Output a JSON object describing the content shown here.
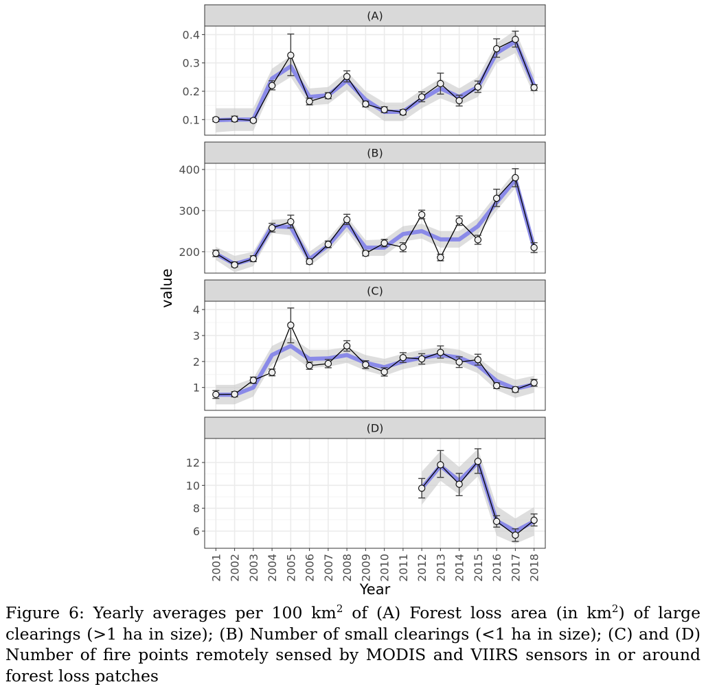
{
  "chart_data": {
    "type": "line",
    "x": [
      2001,
      2002,
      2003,
      2004,
      2005,
      2006,
      2007,
      2008,
      2009,
      2010,
      2011,
      2012,
      2013,
      2014,
      2015,
      2016,
      2017,
      2018
    ],
    "xlabel": "Year",
    "ylabel": "value",
    "grid": true,
    "colors": {
      "observed_line": "#000000",
      "point_fill": "#eeeeee",
      "error_bar": "#404040",
      "smooth_line": "#7b7bea",
      "smooth_band": "#c8c8c8",
      "strip": "#d9d9d9",
      "panel_border": "#333333",
      "grid": "#ebebeb"
    },
    "panels": [
      {
        "strip": "(A)",
        "ylim": [
          0.045,
          0.43
        ],
        "yticks": [
          0.1,
          0.2,
          0.3,
          0.4
        ],
        "ytick_labels": [
          "0.1",
          "0.2",
          "0.3",
          "0.4"
        ],
        "values": [
          0.1,
          0.102,
          0.097,
          0.22,
          0.327,
          0.164,
          0.184,
          0.252,
          0.155,
          0.135,
          0.126,
          0.18,
          0.227,
          0.167,
          0.215,
          0.35,
          0.383,
          0.213
        ],
        "err_low": [
          0.093,
          0.093,
          0.091,
          0.205,
          0.255,
          0.152,
          0.174,
          0.233,
          0.145,
          0.125,
          0.117,
          0.163,
          0.19,
          0.148,
          0.196,
          0.32,
          0.356,
          0.203
        ],
        "err_high": [
          0.107,
          0.112,
          0.103,
          0.237,
          0.402,
          0.176,
          0.195,
          0.272,
          0.165,
          0.145,
          0.135,
          0.198,
          0.264,
          0.186,
          0.236,
          0.385,
          0.412,
          0.223
        ],
        "smooth": [
          0.098,
          0.1,
          0.1,
          0.245,
          0.288,
          0.18,
          0.186,
          0.238,
          0.17,
          0.127,
          0.128,
          0.172,
          0.21,
          0.18,
          0.215,
          0.335,
          0.375,
          0.22
        ],
        "band_low": [
          0.055,
          0.06,
          0.06,
          0.21,
          0.25,
          0.15,
          0.155,
          0.205,
          0.14,
          0.095,
          0.095,
          0.14,
          0.175,
          0.15,
          0.18,
          0.3,
          0.335,
          0.185
        ],
        "band_high": [
          0.14,
          0.14,
          0.14,
          0.28,
          0.325,
          0.21,
          0.215,
          0.27,
          0.2,
          0.16,
          0.16,
          0.205,
          0.245,
          0.21,
          0.25,
          0.37,
          0.415,
          0.255
        ]
      },
      {
        "strip": "(B)",
        "ylim": [
          148,
          415
        ],
        "yticks": [
          200,
          300,
          400
        ],
        "ytick_labels": [
          "200",
          "300",
          "400"
        ],
        "values": [
          196,
          168,
          183,
          258,
          273,
          176,
          218,
          278,
          196,
          221,
          211,
          290,
          186,
          275,
          229,
          330,
          380,
          210
        ],
        "err_low": [
          188,
          163,
          176,
          248,
          258,
          170,
          210,
          266,
          190,
          212,
          200,
          280,
          178,
          264,
          218,
          310,
          358,
          198
        ],
        "err_high": [
          204,
          175,
          190,
          269,
          289,
          183,
          226,
          291,
          202,
          230,
          222,
          301,
          194,
          287,
          240,
          352,
          402,
          222
        ],
        "smooth": [
          195,
          170,
          183,
          262,
          260,
          182,
          215,
          268,
          210,
          210,
          243,
          250,
          230,
          230,
          262,
          320,
          375,
          210
        ],
        "band_low": [
          180,
          150,
          165,
          245,
          240,
          165,
          200,
          250,
          190,
          190,
          225,
          232,
          210,
          210,
          242,
          300,
          355,
          190
        ],
        "band_high": [
          212,
          190,
          200,
          278,
          280,
          200,
          232,
          285,
          228,
          230,
          262,
          268,
          250,
          250,
          282,
          340,
          395,
          230
        ]
      },
      {
        "strip": "(C)",
        "ylim": [
          0.12,
          4.32
        ],
        "yticks": [
          1,
          2,
          3,
          4
        ],
        "ytick_labels": [
          "1",
          "2",
          "3",
          "4"
        ],
        "values": [
          0.73,
          0.74,
          1.28,
          1.58,
          3.4,
          1.84,
          1.92,
          2.6,
          1.88,
          1.6,
          2.15,
          2.1,
          2.35,
          1.98,
          2.07,
          1.07,
          0.92,
          1.18
        ],
        "err_low": [
          0.58,
          0.64,
          1.16,
          1.45,
          2.72,
          1.7,
          1.76,
          2.4,
          1.73,
          1.44,
          1.96,
          1.9,
          2.13,
          1.77,
          1.86,
          0.96,
          0.82,
          1.05
        ],
        "err_high": [
          0.88,
          0.84,
          1.4,
          1.71,
          4.06,
          1.98,
          2.08,
          2.8,
          2.03,
          1.76,
          2.34,
          2.3,
          2.6,
          2.18,
          2.28,
          1.18,
          1.02,
          1.31
        ],
        "smooth": [
          0.72,
          0.72,
          1.0,
          2.25,
          2.6,
          2.1,
          2.12,
          2.25,
          1.95,
          1.78,
          2.0,
          2.15,
          2.25,
          2.15,
          1.85,
          1.25,
          0.95,
          1.12
        ],
        "band_low": [
          0.35,
          0.35,
          0.65,
          1.9,
          2.25,
          1.75,
          1.8,
          1.95,
          1.65,
          1.45,
          1.7,
          1.85,
          1.95,
          1.85,
          1.55,
          0.9,
          0.6,
          0.8
        ],
        "band_high": [
          1.1,
          1.1,
          1.35,
          2.6,
          2.95,
          2.45,
          2.45,
          2.55,
          2.25,
          2.1,
          2.3,
          2.45,
          2.55,
          2.45,
          2.15,
          1.6,
          1.3,
          1.45
        ]
      },
      {
        "strip": "(D)",
        "ylim": [
          4.5,
          14.1
        ],
        "yticks": [
          6,
          8,
          10,
          12
        ],
        "ytick_labels": [
          "6",
          "8",
          "10",
          "12"
        ],
        "values": [
          null,
          null,
          null,
          null,
          null,
          null,
          null,
          null,
          null,
          null,
          null,
          9.75,
          11.8,
          10.1,
          12.1,
          6.85,
          5.65,
          6.95
        ],
        "err_low": [
          null,
          null,
          null,
          null,
          null,
          null,
          null,
          null,
          null,
          null,
          null,
          8.9,
          10.7,
          9.1,
          11.05,
          6.35,
          5.1,
          6.45
        ],
        "err_high": [
          null,
          null,
          null,
          null,
          null,
          null,
          null,
          null,
          null,
          null,
          null,
          10.6,
          13.05,
          11.05,
          13.2,
          7.35,
          6.2,
          7.5
        ],
        "smooth": [
          null,
          null,
          null,
          null,
          null,
          null,
          null,
          null,
          null,
          null,
          null,
          9.75,
          11.7,
          10.4,
          12.0,
          6.9,
          6.0,
          6.85
        ],
        "band_low": [
          null,
          null,
          null,
          null,
          null,
          null,
          null,
          null,
          null,
          null,
          null,
          8.3,
          10.4,
          9.2,
          10.8,
          5.6,
          4.9,
          5.6
        ],
        "band_high": [
          null,
          null,
          null,
          null,
          null,
          null,
          null,
          null,
          null,
          null,
          null,
          11.2,
          13.0,
          11.6,
          13.2,
          8.2,
          7.1,
          8.1
        ]
      }
    ]
  },
  "caption": {
    "p1": "Figure 6: Yearly averages per 100 km",
    "sup1": "2",
    "p2": " of (A) Forest loss area (in km",
    "sup2": "2",
    "p3": ") of large clearings (>1 ha in size); (B) Number of small clearings (<1 ha in size); (C) and (D) Number of fire points remotely sensed by MODIS and VIIRS sensors in or around forest loss patches"
  }
}
